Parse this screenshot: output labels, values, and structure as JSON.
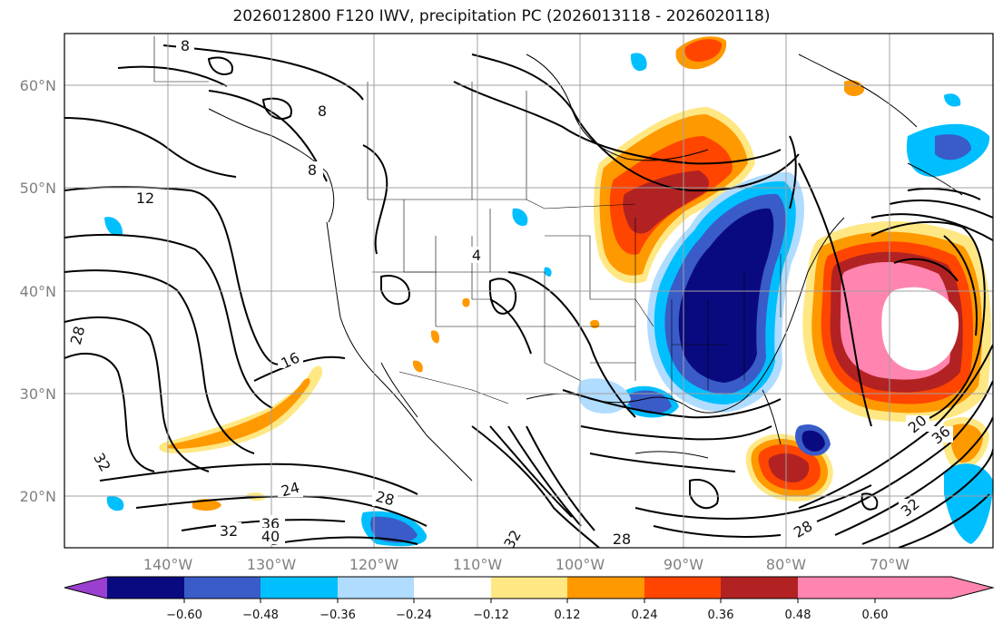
{
  "title": "2026012800 F120 IWV, precipitation PC (2026013118 - 2026020118)",
  "map": {
    "lat_ticks": [
      "60°N",
      "50°N",
      "40°N",
      "30°N",
      "20°N"
    ],
    "lon_ticks": [
      "140°W",
      "130°W",
      "120°W",
      "110°W",
      "100°W",
      "90°W",
      "80°W",
      "70°W"
    ],
    "contour_labels": [
      "8",
      "8",
      "8",
      "12",
      "16",
      "24",
      "28",
      "28",
      "32",
      "32",
      "36",
      "40",
      "4",
      "20",
      "36",
      "28",
      "32",
      "28",
      "32"
    ]
  },
  "colorbar": {
    "ticks": [
      "−0.60",
      "−0.48",
      "−0.36",
      "−0.24",
      "−0.12",
      "0.12",
      "0.24",
      "0.36",
      "0.48",
      "0.60"
    ],
    "colors": [
      "#9b3fd0",
      "#0a0a80",
      "#3a5cc8",
      "#00bfff",
      "#b0dcff",
      "#ffffff",
      "#ffe884",
      "#ff9900",
      "#ff4500",
      "#b22222",
      "#ff85b0"
    ]
  }
}
